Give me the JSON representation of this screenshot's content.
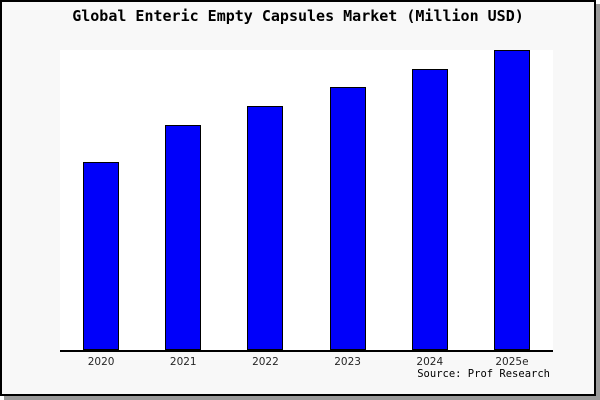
{
  "figure": {
    "background": "#f8f8f8",
    "frame_border_color": "#000000",
    "shadow_color": "#9a9a9a",
    "plot_background": "#ffffff",
    "axis_line_color": "#000000",
    "tick_label_color": "#262626"
  },
  "chart_data": {
    "type": "bar",
    "title": "Global Enteric Empty Capsules Market (Million USD)",
    "categories": [
      "2020",
      "2021",
      "2022",
      "2023",
      "2024",
      "2025e"
    ],
    "values": [
      62.7,
      75.0,
      81.3,
      87.7,
      93.7,
      100.0
    ],
    "value_note": "no y-axis scale shown; values are relative bar heights with tallest bar (2025e) = 100",
    "ylim": [
      0,
      100
    ],
    "xlabel": "",
    "ylabel": "",
    "grid": false,
    "legend": false,
    "bar_color": "#0000fa",
    "bar_edge_color": "#000000",
    "source": "Source: Prof Research"
  }
}
